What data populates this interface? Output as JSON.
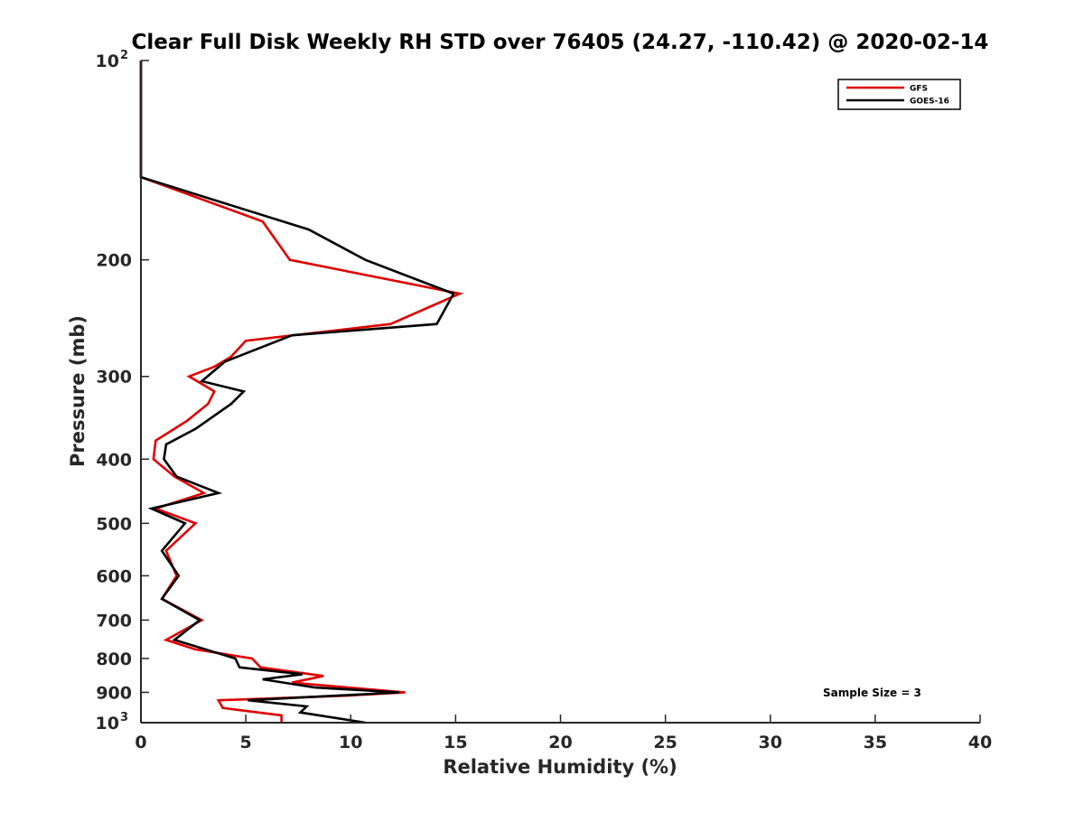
{
  "chart_data": {
    "type": "line",
    "title": "Clear Full Disk Weekly RH STD over 76405 (24.27, -110.42) @ 2020-02-14",
    "xlabel": "Relative Humidity (%)",
    "ylabel": "Pressure (mb)",
    "xlim": [
      0,
      40
    ],
    "ylim": [
      100,
      1000
    ],
    "yscale": "log",
    "yreversed": true,
    "grid": false,
    "legend_position": "top-right",
    "x_ticks": [
      "0",
      "5",
      "10",
      "15",
      "20",
      "25",
      "30",
      "35",
      "40"
    ],
    "x_tick_values": [
      0,
      5,
      10,
      15,
      20,
      25,
      30,
      35,
      40
    ],
    "y_ticks": [
      {
        "value": 100,
        "base": "10",
        "exp": "2"
      },
      {
        "value": 200,
        "label": "200"
      },
      {
        "value": 300,
        "label": "300"
      },
      {
        "value": 400,
        "label": "400"
      },
      {
        "value": 500,
        "label": "500"
      },
      {
        "value": 600,
        "label": "600"
      },
      {
        "value": 700,
        "label": "700"
      },
      {
        "value": 800,
        "label": "800"
      },
      {
        "value": 900,
        "label": "900"
      },
      {
        "value": 1000,
        "base": "10",
        "exp": "3"
      }
    ],
    "annotation": "Sample Size = 3",
    "series": [
      {
        "name": "GFS",
        "color": "#e00000",
        "points": [
          [
            0,
            100
          ],
          [
            0,
            150
          ],
          [
            5.8,
            175
          ],
          [
            7.1,
            200
          ],
          [
            15.2,
            225
          ],
          [
            11.9,
            250
          ],
          [
            5.0,
            265
          ],
          [
            4.3,
            280
          ],
          [
            3.5,
            290
          ],
          [
            2.3,
            300
          ],
          [
            3.5,
            316
          ],
          [
            3.2,
            330
          ],
          [
            2.2,
            350
          ],
          [
            0.7,
            375
          ],
          [
            0.6,
            400
          ],
          [
            1.6,
            425
          ],
          [
            3.0,
            450
          ],
          [
            0.7,
            475
          ],
          [
            2.6,
            500
          ],
          [
            1.2,
            550
          ],
          [
            1.7,
            600
          ],
          [
            1.0,
            650
          ],
          [
            2.9,
            700
          ],
          [
            1.2,
            750
          ],
          [
            2.6,
            775
          ],
          [
            5.3,
            800
          ],
          [
            5.7,
            825
          ],
          [
            8.7,
            850
          ],
          [
            7.2,
            870
          ],
          [
            12.6,
            900
          ],
          [
            9.9,
            910
          ],
          [
            3.7,
            925
          ],
          [
            3.9,
            950
          ],
          [
            6.7,
            975
          ],
          [
            6.7,
            1000
          ]
        ]
      },
      {
        "name": "GOES-16",
        "color": "#000000",
        "points": [
          [
            0,
            100
          ],
          [
            0,
            150
          ],
          [
            8.0,
            180
          ],
          [
            10.7,
            200
          ],
          [
            14.9,
            225
          ],
          [
            14.1,
            250
          ],
          [
            7.2,
            260
          ],
          [
            4.0,
            285
          ],
          [
            2.9,
            305
          ],
          [
            4.9,
            316
          ],
          [
            4.3,
            330
          ],
          [
            2.6,
            360
          ],
          [
            1.2,
            380
          ],
          [
            1.1,
            400
          ],
          [
            1.7,
            425
          ],
          [
            3.7,
            450
          ],
          [
            0.5,
            475
          ],
          [
            2.1,
            500
          ],
          [
            1.0,
            550
          ],
          [
            1.8,
            600
          ],
          [
            1.0,
            650
          ],
          [
            2.8,
            700
          ],
          [
            1.6,
            750
          ],
          [
            4.5,
            800
          ],
          [
            4.7,
            825
          ],
          [
            7.7,
            845
          ],
          [
            5.8,
            860
          ],
          [
            8.3,
            885
          ],
          [
            12.3,
            900
          ],
          [
            5.1,
            925
          ],
          [
            7.9,
            945
          ],
          [
            7.6,
            965
          ],
          [
            10.7,
            1000
          ]
        ]
      }
    ]
  }
}
